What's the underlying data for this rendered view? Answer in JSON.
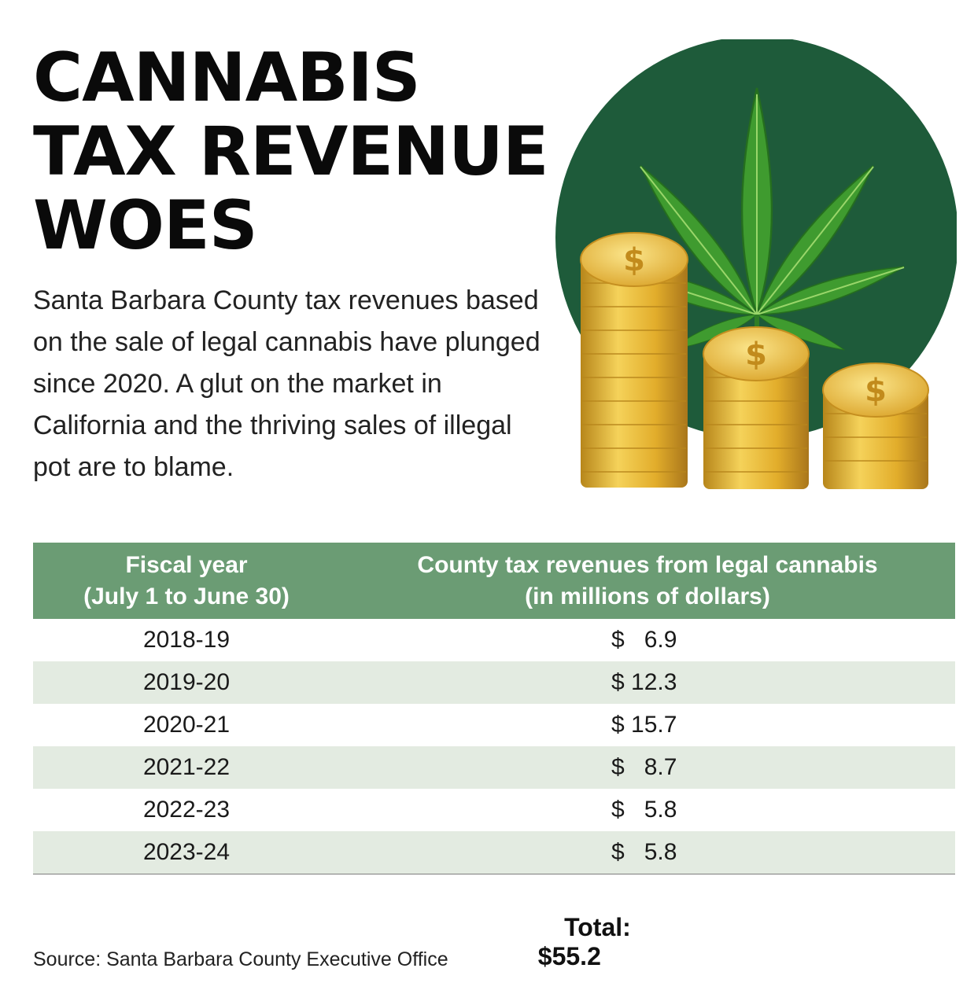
{
  "title_lines": [
    "CANNABIS",
    "TAX REVENUE",
    "WOES"
  ],
  "intro": "Santa Barbara County tax revenues based on the sale of legal cannabis have plunged since 2020. A glut on the market in California and the thriving sales of illegal pot are to blame.",
  "art": {
    "coin_symbol": "$",
    "icons": [
      "cannabis-leaf-icon",
      "coin-stack-icon"
    ],
    "colors": {
      "circle": "#1e5b3a",
      "leaf": "#3f9b2f",
      "coin": "#e5b42e"
    }
  },
  "table": {
    "header": {
      "col1": [
        "Fiscal year",
        "(July 1 to  June 30)"
      ],
      "col2": [
        "County tax revenues from legal cannabis",
        "(in millions of dollars)"
      ]
    },
    "rows": [
      {
        "year": "2018-19",
        "amount": "$   6.9"
      },
      {
        "year": "2019-20",
        "amount": "$ 12.3"
      },
      {
        "year": "2020-21",
        "amount": "$ 15.7"
      },
      {
        "year": "2021-22",
        "amount": "$   8.7"
      },
      {
        "year": "2022-23",
        "amount": "$   5.8"
      },
      {
        "year": "2023-24",
        "amount": "$   5.8"
      }
    ],
    "total_label": "Total:",
    "total_value": "$55.2"
  },
  "source": "Source: Santa Barbara County Executive Office",
  "chart_data": {
    "type": "table",
    "title": "CANNABIS TAX REVENUE WOES",
    "columns": [
      "Fiscal year (July 1 to June 30)",
      "County tax revenues from legal cannabis (in millions of dollars)"
    ],
    "categories": [
      "2018-19",
      "2019-20",
      "2020-21",
      "2021-22",
      "2022-23",
      "2023-24"
    ],
    "values": [
      6.9,
      12.3,
      15.7,
      8.7,
      5.8,
      5.8
    ],
    "total": 55.2,
    "colors": {
      "header": "#6b9c74",
      "stripe": "#e3ebe1"
    }
  }
}
